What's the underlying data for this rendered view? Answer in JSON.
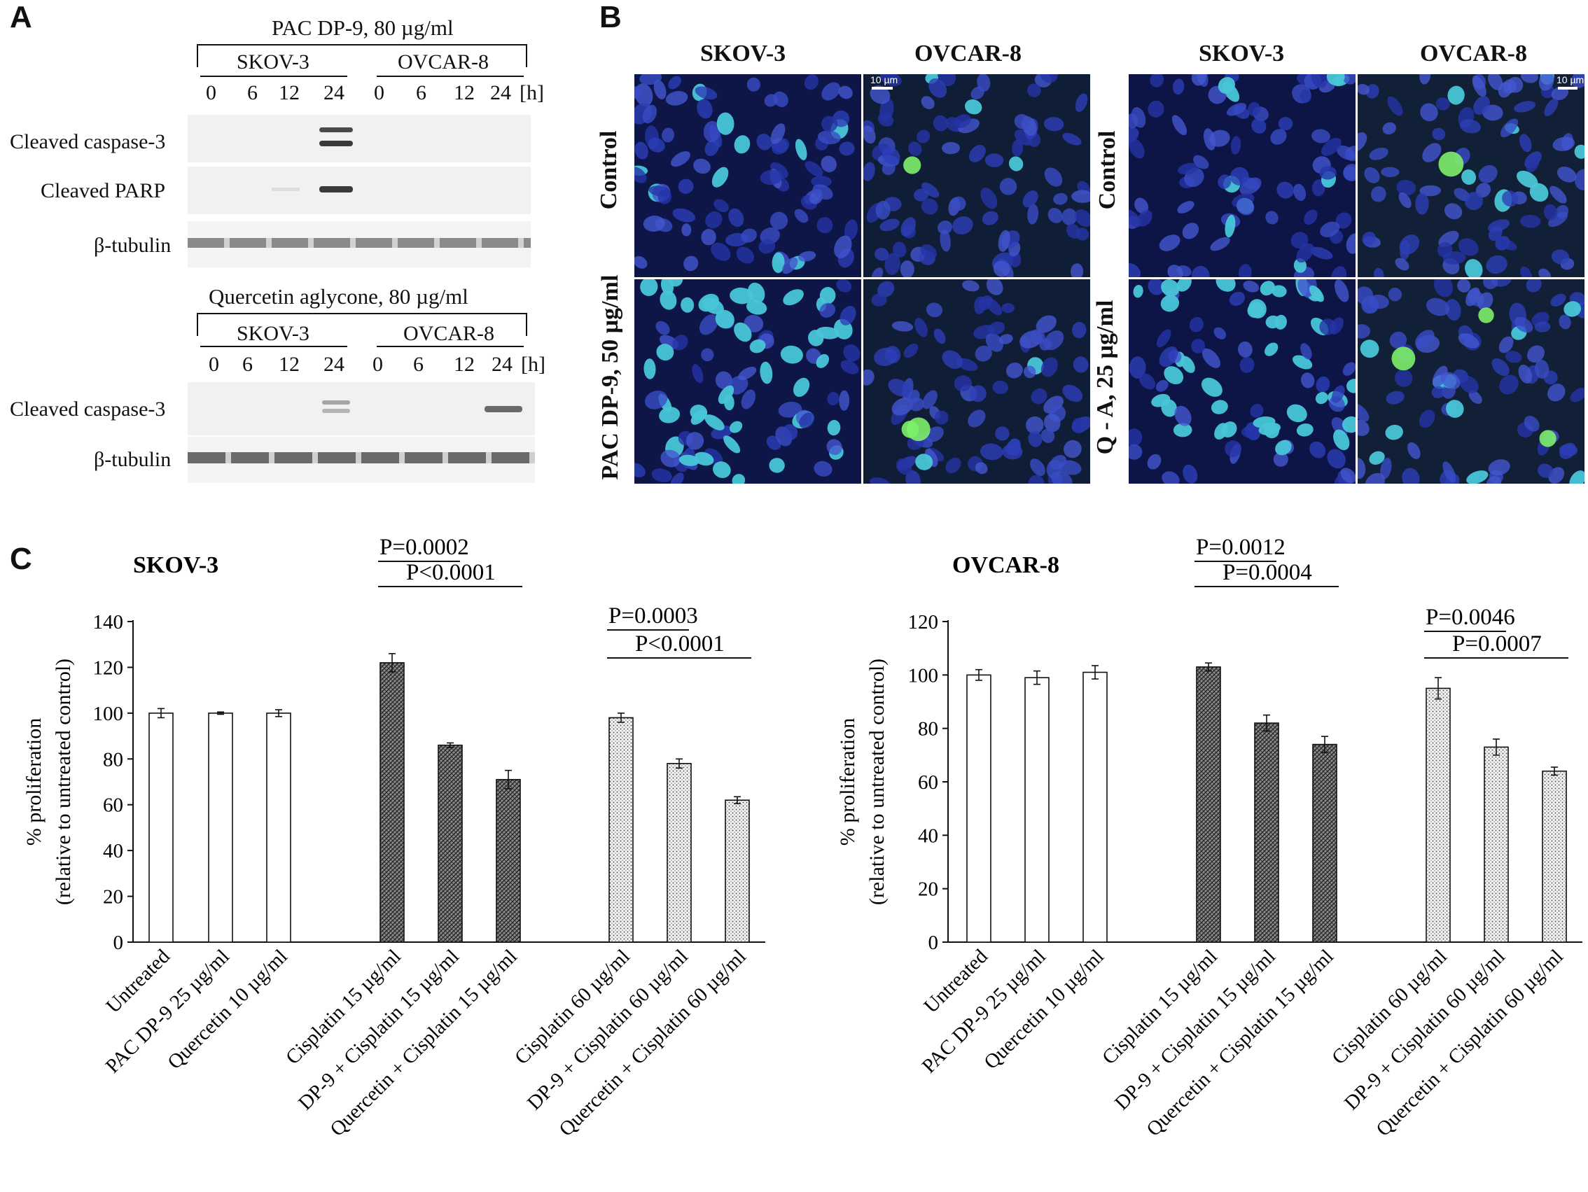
{
  "panel_a": {
    "letter": "A",
    "blot1": {
      "treatment": "PAC DP-9, 80 µg/ml",
      "lines": [
        "SKOV-3",
        "OVCAR-8"
      ],
      "timepoints": [
        "0",
        "6",
        "12",
        "24",
        "0",
        "6",
        "12",
        "24"
      ],
      "unit": "[h]",
      "rows": [
        "Cleaved caspase-3",
        "Cleaved PARP",
        "β-tubulin"
      ]
    },
    "blot2": {
      "treatment": "Quercetin aglycone, 80 µg/ml",
      "lines": [
        "SKOV-3",
        "OVCAR-8"
      ],
      "timepoints": [
        "0",
        "6",
        "12",
        "24",
        "0",
        "6",
        "12",
        "24"
      ],
      "unit": "[h]",
      "rows": [
        "Cleaved caspase-3",
        "β-tubulin"
      ]
    }
  },
  "panel_b": {
    "letter": "B",
    "col_headers": [
      "SKOV-3",
      "OVCAR-8",
      "SKOV-3",
      "OVCAR-8"
    ],
    "row_labels_left": [
      "Control",
      "PAC DP-9, 50 µg/ml"
    ],
    "row_labels_right": [
      "Control",
      "Q - A, 25 µg/ml"
    ],
    "scale_bar": "10 µm"
  },
  "panel_c": {
    "letter": "C",
    "ylabel_line1": "% proliferation",
    "ylabel_line2": "(relative to untreated control)"
  },
  "chart_data": [
    {
      "type": "bar",
      "title": "SKOV-3",
      "ylabel": "% proliferation (relative to untreated control)",
      "ylim": [
        0,
        140
      ],
      "yticks": [
        0,
        20,
        40,
        60,
        80,
        100,
        120,
        140
      ],
      "categories": [
        "Untreated",
        "PAC DP-9 25 µg/ml",
        "Quercetin 10 µg/ml",
        "Cisplatin 15 µg/ml",
        "DP-9 + Cisplatin 15 µg/ml",
        "Quercetin + Cisplatin 15 µg/ml",
        "Cisplatin 60 µg/ml",
        "DP-9 + Cisplatin 60 µg/ml",
        "Quercetin + Cisplatin 60 µg/ml"
      ],
      "values": [
        100,
        100,
        100,
        122,
        86,
        71,
        98,
        78,
        62
      ],
      "errors": [
        2,
        0.5,
        1.5,
        4,
        1,
        4,
        2,
        2,
        1.5
      ],
      "patterns": [
        "open",
        "open",
        "open",
        "dark",
        "dark",
        "dark",
        "light",
        "light",
        "light"
      ],
      "comparisons": [
        {
          "label": "P<0.0001",
          "from": 3,
          "to": 5
        },
        {
          "label": "P=0.0002",
          "from": 3,
          "to": 4
        },
        {
          "label": "P<0.0001",
          "from": 6,
          "to": 8
        },
        {
          "label": "P=0.0003",
          "from": 6,
          "to": 7
        }
      ]
    },
    {
      "type": "bar",
      "title": "OVCAR-8",
      "ylabel": "% proliferation (relative to untreated control)",
      "ylim": [
        0,
        120
      ],
      "yticks": [
        0,
        20,
        40,
        60,
        80,
        100,
        120
      ],
      "categories": [
        "Untreated",
        "PAC DP-9 25 µg/ml",
        "Quercetin 10 µg/ml",
        "Cisplatin 15 µg/ml",
        "DP-9 + Cisplatin 15 µg/ml",
        "Quercetin + Cisplatin 15 µg/ml",
        "Cisplatin 60 µg/ml",
        "DP-9 + Cisplatin 60 µg/ml",
        "Quercetin + Cisplatin 60 µg/ml"
      ],
      "values": [
        100,
        99,
        101,
        103,
        82,
        74,
        95,
        73,
        64
      ],
      "errors": [
        2,
        2.5,
        2.5,
        1.5,
        3,
        3,
        4,
        3,
        1.5
      ],
      "patterns": [
        "open",
        "open",
        "open",
        "dark",
        "dark",
        "dark",
        "light",
        "light",
        "light"
      ],
      "comparisons": [
        {
          "label": "P=0.0004",
          "from": 3,
          "to": 5
        },
        {
          "label": "P=0.0012",
          "from": 3,
          "to": 4
        },
        {
          "label": "P=0.0007",
          "from": 6,
          "to": 8
        },
        {
          "label": "P=0.0046",
          "from": 6,
          "to": 7
        }
      ]
    }
  ]
}
